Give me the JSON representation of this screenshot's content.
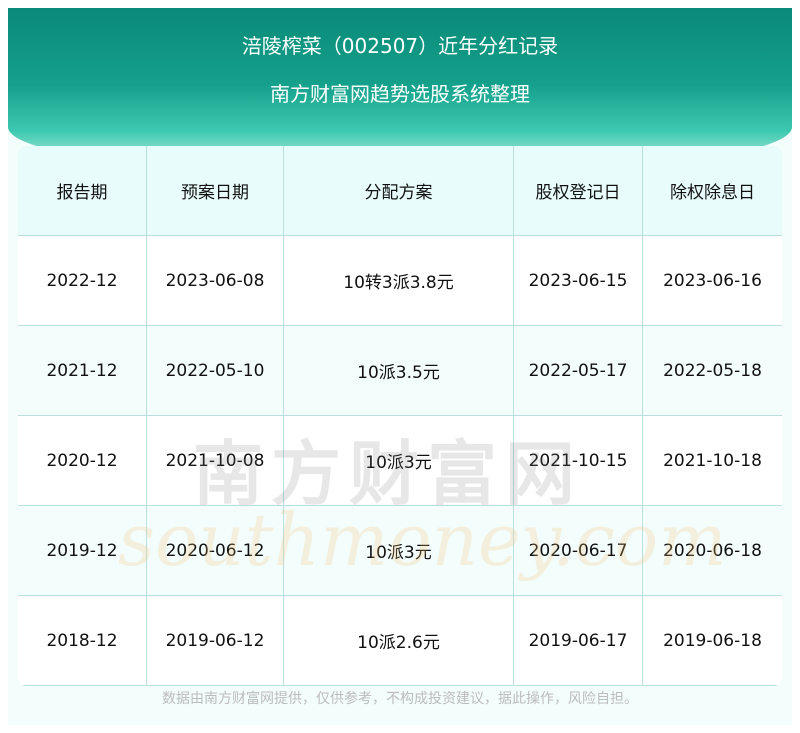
{
  "header": {
    "title": "涪陵榨菜（002507）近年分红记录",
    "subtitle": "南方财富网趋势选股系统整理"
  },
  "table": {
    "columns": [
      "报告期",
      "预案日期",
      "分配方案",
      "股权登记日",
      "除权除息日"
    ],
    "rows": [
      [
        "2022-12",
        "2023-06-08",
        "10转3派3.8元",
        "2023-06-15",
        "2023-06-16"
      ],
      [
        "2021-12",
        "2022-05-10",
        "10派3.5元",
        "2022-05-17",
        "2022-05-18"
      ],
      [
        "2020-12",
        "2021-10-08",
        "10派3元",
        "2021-10-15",
        "2021-10-18"
      ],
      [
        "2019-12",
        "2020-06-12",
        "10派3元",
        "2020-06-17",
        "2020-06-18"
      ],
      [
        "2018-12",
        "2019-06-12",
        "10派2.6元",
        "2019-06-17",
        "2019-06-18"
      ]
    ]
  },
  "watermark": {
    "cn": "南方财富网",
    "en": "southmoney.com"
  },
  "footer": {
    "disclaimer": "数据由南方财富网提供，仅供参考，不构成投资建议，据此操作，风险自担。"
  },
  "colors": {
    "banner": "#0a8a78",
    "grid": "#b9e0dd",
    "header_row": "#e8fdfb"
  }
}
